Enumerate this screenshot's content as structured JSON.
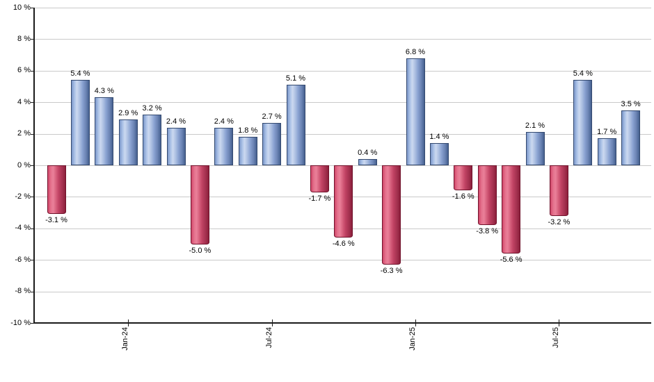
{
  "chart_data": {
    "type": "bar",
    "title": "",
    "xlabel": "",
    "ylabel": "",
    "unit": "%",
    "ylim": [
      -10,
      10
    ],
    "ytick_step": 2,
    "grid": true,
    "legend": "none",
    "yticks": [
      "10 %",
      "8 %",
      "6 %",
      "4 %",
      "2 %",
      "0 %",
      "-2 %",
      "-4 %",
      "-6 %",
      "-8 %",
      "-10 %"
    ],
    "x_tick_labels": [
      {
        "bar_index": 3,
        "label": "Jan-24"
      },
      {
        "bar_index": 9,
        "label": "Jul-24"
      },
      {
        "bar_index": 15,
        "label": "Jan-25"
      },
      {
        "bar_index": 21,
        "label": "Jul-25"
      }
    ],
    "bars": [
      {
        "value": -3.1,
        "label": "-3.1 %"
      },
      {
        "value": 5.4,
        "label": "5.4 %"
      },
      {
        "value": 4.3,
        "label": "4.3 %"
      },
      {
        "value": 2.9,
        "label": "2.9 %"
      },
      {
        "value": 3.2,
        "label": "3.2 %"
      },
      {
        "value": 2.4,
        "label": "2.4 %"
      },
      {
        "value": -5.0,
        "label": "-5.0 %"
      },
      {
        "value": 2.4,
        "label": "2.4 %"
      },
      {
        "value": 1.8,
        "label": "1.8 %"
      },
      {
        "value": 2.7,
        "label": "2.7 %"
      },
      {
        "value": 5.1,
        "label": "5.1 %"
      },
      {
        "value": -1.7,
        "label": "-1.7 %"
      },
      {
        "value": -4.6,
        "label": "-4.6 %"
      },
      {
        "value": 0.4,
        "label": "0.4 %"
      },
      {
        "value": -6.3,
        "label": "-6.3 %"
      },
      {
        "value": 6.8,
        "label": "6.8 %"
      },
      {
        "value": 1.4,
        "label": "1.4 %"
      },
      {
        "value": -1.6,
        "label": "-1.6 %"
      },
      {
        "value": -3.8,
        "label": "-3.8 %"
      },
      {
        "value": -5.6,
        "label": "-5.6 %"
      },
      {
        "value": 2.1,
        "label": "2.1 %"
      },
      {
        "value": -3.2,
        "label": "-3.2 %"
      },
      {
        "value": 5.4,
        "label": "5.4 %"
      },
      {
        "value": 1.7,
        "label": "1.7 %"
      },
      {
        "value": 3.5,
        "label": "3.5 %"
      }
    ],
    "colors": {
      "positive_light": "#ccd9f0",
      "positive_dark": "#46608f",
      "positive_edge": "#33496f",
      "negative_light": "#ea8099",
      "negative_dark": "#8c1f3c",
      "negative_edge": "#70122b",
      "gridline": "#c9c9c9",
      "axis": "#1a1a1a",
      "text": "#000000"
    }
  }
}
